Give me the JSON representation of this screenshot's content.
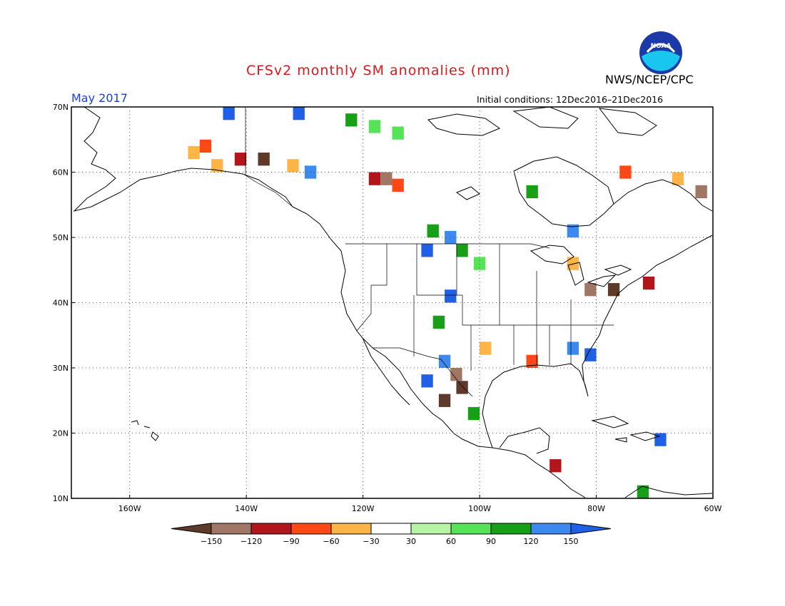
{
  "header": {
    "title": "CFSv2 monthly SM anomalies (mm)",
    "agency": "NWS/NCEP/CPC",
    "valid_month": "May 2017",
    "initial_conditions": "Initial conditions: 12Dec2016–21Dec2016",
    "logo_text": "NOAA",
    "logo_icon": "noaa-logo-icon"
  },
  "map": {
    "projection": "cylindrical",
    "lon_range": [
      -170,
      -60
    ],
    "lat_range": [
      10,
      70
    ],
    "grid": true,
    "lat_labels": [
      "70N",
      "60N",
      "50N",
      "40N",
      "30N",
      "20N",
      "10N"
    ],
    "lon_labels": [
      "160W",
      "140W",
      "120W",
      "100W",
      "80W",
      "60W"
    ],
    "anomaly_cells": [
      {
        "lon": -149,
        "lat": 63,
        "cat": "-30"
      },
      {
        "lon": -147,
        "lat": 64,
        "cat": "-60"
      },
      {
        "lon": -145,
        "lat": 61,
        "cat": "-30"
      },
      {
        "lon": -141,
        "lat": 62,
        "cat": "-90"
      },
      {
        "lon": -137,
        "lat": 62,
        "cat": "-150"
      },
      {
        "lon": -132,
        "lat": 61,
        "cat": "-30"
      },
      {
        "lon": -129,
        "lat": 60,
        "cat": "120"
      },
      {
        "lon": -118,
        "lat": 59,
        "cat": "-90"
      },
      {
        "lon": -116,
        "lat": 59,
        "cat": "-120"
      },
      {
        "lon": -114,
        "lat": 58,
        "cat": "-60"
      },
      {
        "lon": -122,
        "lat": 68,
        "cat": "90"
      },
      {
        "lon": -118,
        "lat": 67,
        "cat": "60"
      },
      {
        "lon": -114,
        "lat": 66,
        "cat": "60"
      },
      {
        "lon": -131,
        "lat": 69,
        "cat": "150"
      },
      {
        "lon": -143,
        "lat": 69,
        "cat": "150"
      },
      {
        "lon": -108,
        "lat": 51,
        "cat": "90"
      },
      {
        "lon": -105,
        "lat": 50,
        "cat": "120"
      },
      {
        "lon": -109,
        "lat": 48,
        "cat": "150"
      },
      {
        "lon": -103,
        "lat": 48,
        "cat": "90"
      },
      {
        "lon": -100,
        "lat": 46,
        "cat": "60"
      },
      {
        "lon": -105,
        "lat": 41,
        "cat": "150"
      },
      {
        "lon": -107,
        "lat": 37,
        "cat": "90"
      },
      {
        "lon": -106,
        "lat": 31,
        "cat": "120"
      },
      {
        "lon": -103,
        "lat": 27,
        "cat": "-150"
      },
      {
        "lon": -104,
        "lat": 29,
        "cat": "-120"
      },
      {
        "lon": -109,
        "lat": 28,
        "cat": "150"
      },
      {
        "lon": -106,
        "lat": 25,
        "cat": "-150"
      },
      {
        "lon": -101,
        "lat": 23,
        "cat": "90"
      },
      {
        "lon": -99,
        "lat": 33,
        "cat": "-30"
      },
      {
        "lon": -91,
        "lat": 31,
        "cat": "-60"
      },
      {
        "lon": -84,
        "lat": 33,
        "cat": "120"
      },
      {
        "lon": -81,
        "lat": 32,
        "cat": "150"
      },
      {
        "lon": -81,
        "lat": 42,
        "cat": "-120"
      },
      {
        "lon": -77,
        "lat": 42,
        "cat": "-150"
      },
      {
        "lon": -71,
        "lat": 43,
        "cat": "-90"
      },
      {
        "lon": -66,
        "lat": 59,
        "cat": "-30"
      },
      {
        "lon": -62,
        "lat": 57,
        "cat": "-120"
      },
      {
        "lon": -75,
        "lat": 60,
        "cat": "-60"
      },
      {
        "lon": -84,
        "lat": 46,
        "cat": "-30"
      },
      {
        "lon": -91,
        "lat": 57,
        "cat": "90"
      },
      {
        "lon": -84,
        "lat": 51,
        "cat": "120"
      },
      {
        "lon": -87,
        "lat": 15,
        "cat": "-90"
      },
      {
        "lon": -69,
        "lat": 19,
        "cat": "150"
      },
      {
        "lon": -72,
        "lat": 11,
        "cat": "90"
      }
    ]
  },
  "legend": {
    "categories": [
      {
        "key": "-150",
        "color": "#5e3a2b"
      },
      {
        "key": "-120",
        "color": "#a07665"
      },
      {
        "key": "-90",
        "color": "#b2161b"
      },
      {
        "key": "-60",
        "color": "#ff4815"
      },
      {
        "key": "-30",
        "color": "#ffb447"
      },
      {
        "key": "0",
        "color": "#ffffff"
      },
      {
        "key": "30",
        "color": "#b7f5a6"
      },
      {
        "key": "60",
        "color": "#57e357"
      },
      {
        "key": "90",
        "color": "#179f17"
      },
      {
        "key": "120",
        "color": "#3c8af0"
      },
      {
        "key": "150",
        "color": "#2060e8"
      }
    ],
    "tick_labels": [
      "−150",
      "−120",
      "−90",
      "−60",
      "−30",
      "30",
      "60",
      "90",
      "120",
      "150"
    ]
  }
}
